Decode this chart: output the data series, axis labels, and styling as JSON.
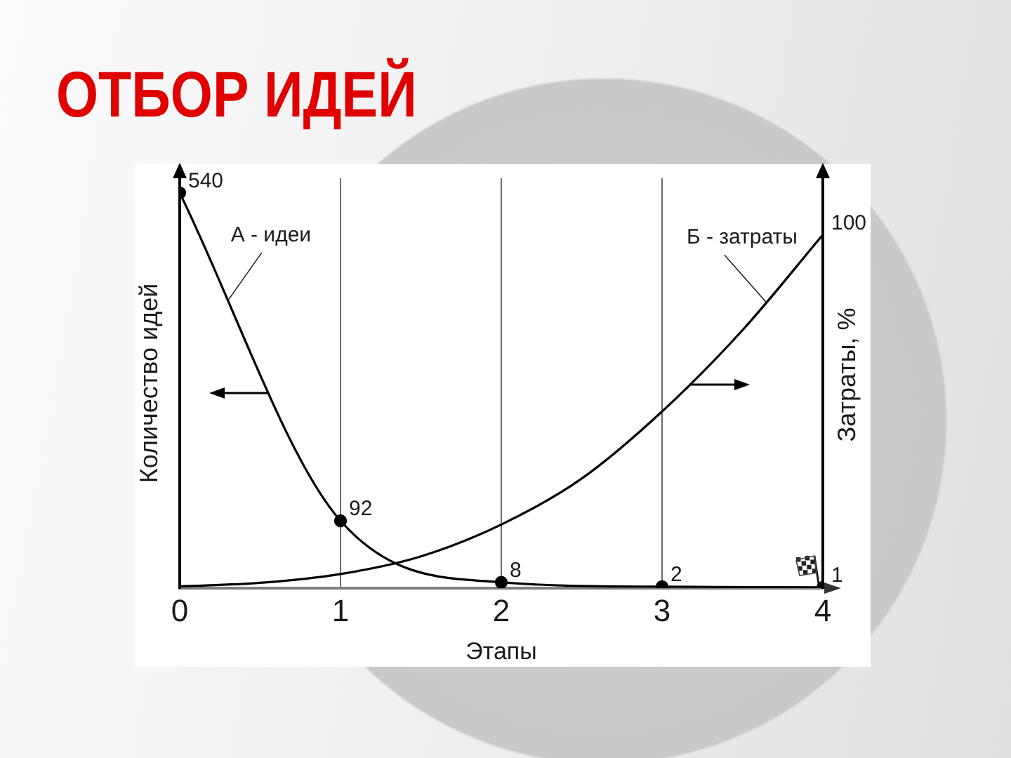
{
  "chart_data": {
    "type": "line",
    "title": "ОТБОР ИДЕЙ",
    "xlabel": "Этапы",
    "ylabel": "Количество идей",
    "y2label": "Затраты, %",
    "xlim": [
      0,
      4
    ],
    "xticks": [
      0,
      1,
      2,
      3,
      4
    ],
    "ylim": [
      0,
      560
    ],
    "y2lim": [
      0,
      116
    ],
    "grid": "x",
    "legend": false,
    "series": [
      {
        "name": "А - идеи",
        "color": "#000000",
        "x": [
          0,
          1,
          2,
          3,
          4
        ],
        "values": [
          540,
          92,
          8,
          2,
          1
        ],
        "value_labels": [
          "540",
          "92",
          "8",
          "2",
          "1"
        ],
        "marker": "circle"
      },
      {
        "name": "Б - затраты",
        "color": "#000000",
        "axis": "y2",
        "x": [
          0,
          0.5,
          1,
          1.5,
          2,
          2.5,
          3,
          3.5,
          4
        ],
        "values": [
          0.5,
          1.5,
          4,
          9,
          18,
          31,
          50,
          73,
          100
        ],
        "value_labels": [
          null,
          null,
          null,
          null,
          null,
          null,
          null,
          null,
          "100"
        ],
        "marker": "none"
      }
    ]
  }
}
